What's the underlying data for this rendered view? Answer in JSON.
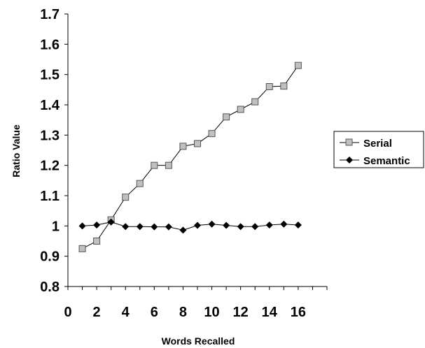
{
  "chart_data": {
    "type": "line",
    "title": "",
    "xlabel": "Words Recalled",
    "ylabel": "Ratio Value",
    "xlim": [
      0,
      18
    ],
    "ylim": [
      0.8,
      1.7
    ],
    "x_ticks": [
      "0",
      "2",
      "4",
      "6",
      "8",
      "10",
      "12",
      "14",
      "16"
    ],
    "y_ticks": [
      "0.8",
      "0.9",
      "1",
      "1.1",
      "1.2",
      "1.3",
      "1.4",
      "1.5",
      "1.6",
      "1.7"
    ],
    "grid": false,
    "legend_position": "right",
    "x": [
      1,
      2,
      3,
      4,
      5,
      6,
      7,
      8,
      9,
      10,
      11,
      12,
      13,
      14,
      15,
      16
    ],
    "series": [
      {
        "name": "Serial",
        "marker": "square",
        "marker_color": "#c0c0c0",
        "values": [
          0.925,
          0.95,
          1.02,
          1.095,
          1.14,
          1.2,
          1.2,
          1.263,
          1.272,
          1.305,
          1.36,
          1.385,
          1.41,
          1.46,
          1.462,
          1.53
        ]
      },
      {
        "name": "Semantic",
        "marker": "diamond",
        "marker_color": "#000000",
        "values": [
          1.0,
          1.003,
          1.013,
          0.998,
          0.998,
          0.997,
          0.997,
          0.986,
          1.002,
          1.006,
          1.002,
          0.998,
          0.998,
          1.003,
          1.006,
          1.003
        ]
      }
    ]
  }
}
